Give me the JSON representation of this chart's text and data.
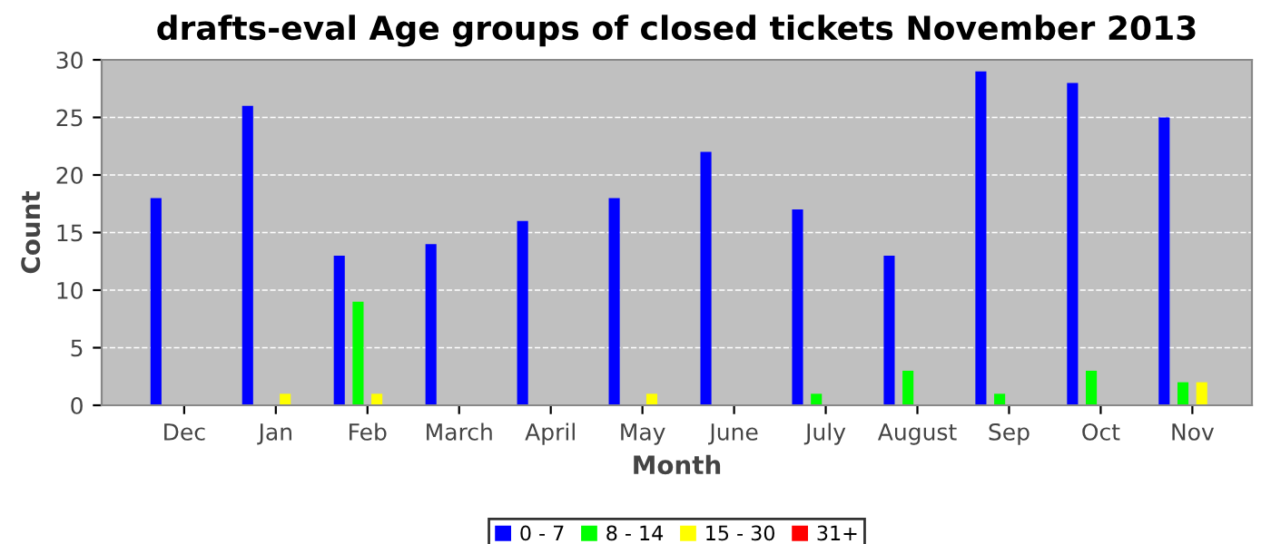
{
  "chart_data": {
    "type": "bar",
    "title": "drafts-eval Age groups of closed tickets November 2013",
    "xlabel": "Month",
    "ylabel": "Count",
    "categories": [
      "Dec",
      "Jan",
      "Feb",
      "March",
      "April",
      "May",
      "June",
      "July",
      "August",
      "Sep",
      "Oct",
      "Nov"
    ],
    "series": [
      {
        "name": "0 - 7",
        "color": "#0000ff",
        "values": [
          18,
          26,
          13,
          14,
          16,
          18,
          22,
          17,
          13,
          29,
          28,
          25
        ]
      },
      {
        "name": "8 - 14",
        "color": "#00ff00",
        "values": [
          0,
          0,
          9,
          0,
          0,
          0,
          0,
          1,
          3,
          1,
          3,
          2
        ]
      },
      {
        "name": "15 - 30",
        "color": "#ffff00",
        "values": [
          0,
          1,
          1,
          0,
          0,
          1,
          0,
          0,
          0,
          0,
          0,
          2
        ]
      },
      {
        "name": "31+",
        "color": "#ff0000",
        "values": [
          0,
          0,
          0,
          0,
          0,
          0,
          0,
          0,
          0,
          0,
          0,
          0
        ]
      }
    ],
    "ylim": [
      0,
      30
    ],
    "yticks": [
      0,
      5,
      10,
      15,
      20,
      25,
      30
    ],
    "grid": "y",
    "legend": "bottom"
  }
}
